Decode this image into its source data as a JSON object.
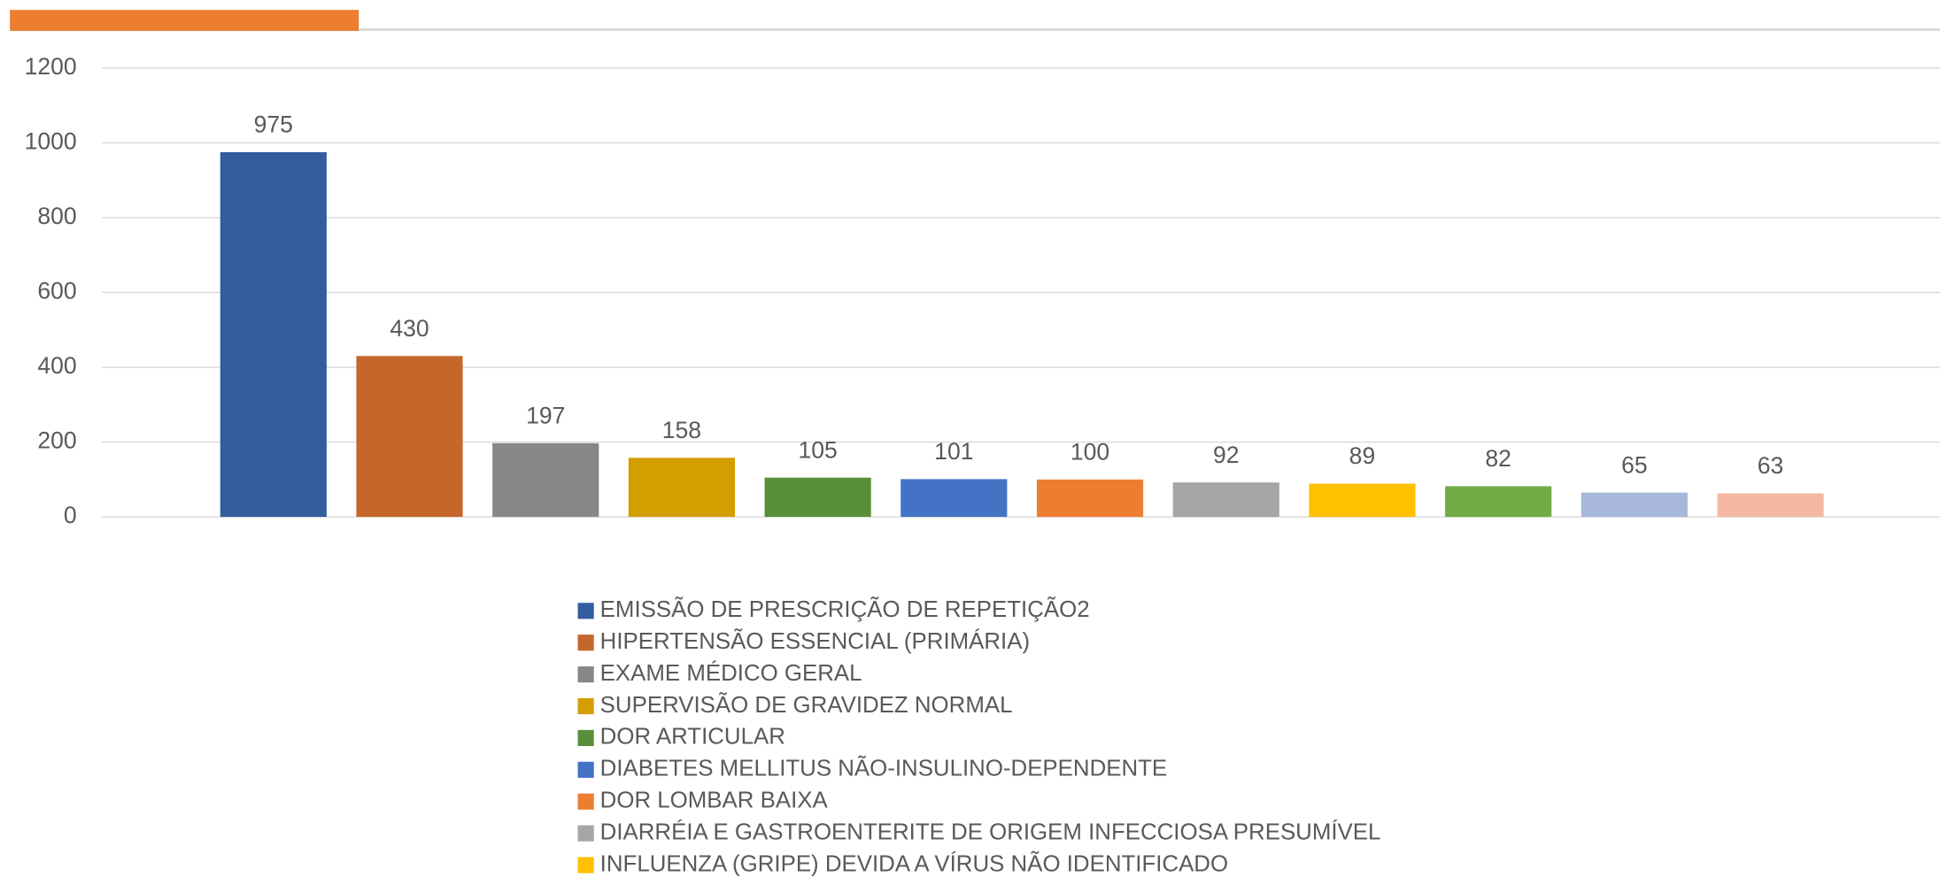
{
  "chart_data": {
    "type": "bar",
    "categories": [
      "EMISSÃO DE PRESCRIÇÃO DE REPETIÇÃO2",
      "HIPERTENSÃO ESSENCIAL (PRIMÁRIA)",
      "EXAME MÉDICO GERAL",
      "SUPERVISÃO DE GRAVIDEZ NORMAL",
      "DOR ARTICULAR",
      "DIABETES MELLITUS NÃO-INSULINO-DEPENDENTE",
      "DOR LOMBAR BAIXA",
      "DIARRÉIA E GASTROENTERITE DE ORIGEM INFECCIOSA PRESUMÍVEL",
      "INFLUENZA (GRIPE) DEVIDA A VÍRUS NÃO IDENTIFICADO",
      null,
      null,
      null
    ],
    "values": [
      975,
      430,
      197,
      158,
      105,
      101,
      100,
      92,
      89,
      82,
      65,
      63
    ],
    "colors": [
      "#345da0",
      "#c5662a",
      "#878787",
      "#d49d00",
      "#5a8f3a",
      "#4472c4",
      "#ed7d31",
      "#a5a5a5",
      "#ffc000",
      "#70ad47",
      "#a8b7dc",
      "#f4b9a4"
    ],
    "ylim": [
      0,
      1200
    ],
    "yticks": [
      0,
      200,
      400,
      600,
      800,
      1000,
      1200
    ],
    "grid": true
  }
}
